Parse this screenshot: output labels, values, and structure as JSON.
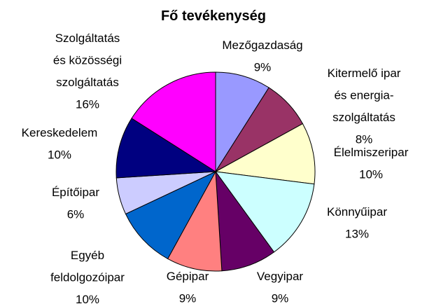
{
  "chart_data": {
    "type": "pie",
    "title": "Fő tevékenység",
    "categories": [
      "Mezőgazdaság",
      "Kitermelő ipar\nés energia-\nszolgáltatás",
      "Élelmiszeripar",
      "Könnyűipar",
      "Vegyipar",
      "Gépipar",
      "Egyéb\nfeldolgozóipar",
      "Építőipar",
      "Kereskedelem",
      "Szolgáltatás\nés közösségi\nszolgáltatás"
    ],
    "values": [
      9,
      8,
      10,
      13,
      9,
      9,
      10,
      6,
      10,
      16
    ],
    "value_labels": [
      "9%",
      "8%",
      "10%",
      "13%",
      "9%",
      "9%",
      "10%",
      "6%",
      "10%",
      "16%"
    ],
    "colors": [
      "#9999ff",
      "#993366",
      "#ffffcc",
      "#ccffff",
      "#660066",
      "#ff8080",
      "#0066cc",
      "#ccccff",
      "#000080",
      "#ff00ff"
    ]
  }
}
